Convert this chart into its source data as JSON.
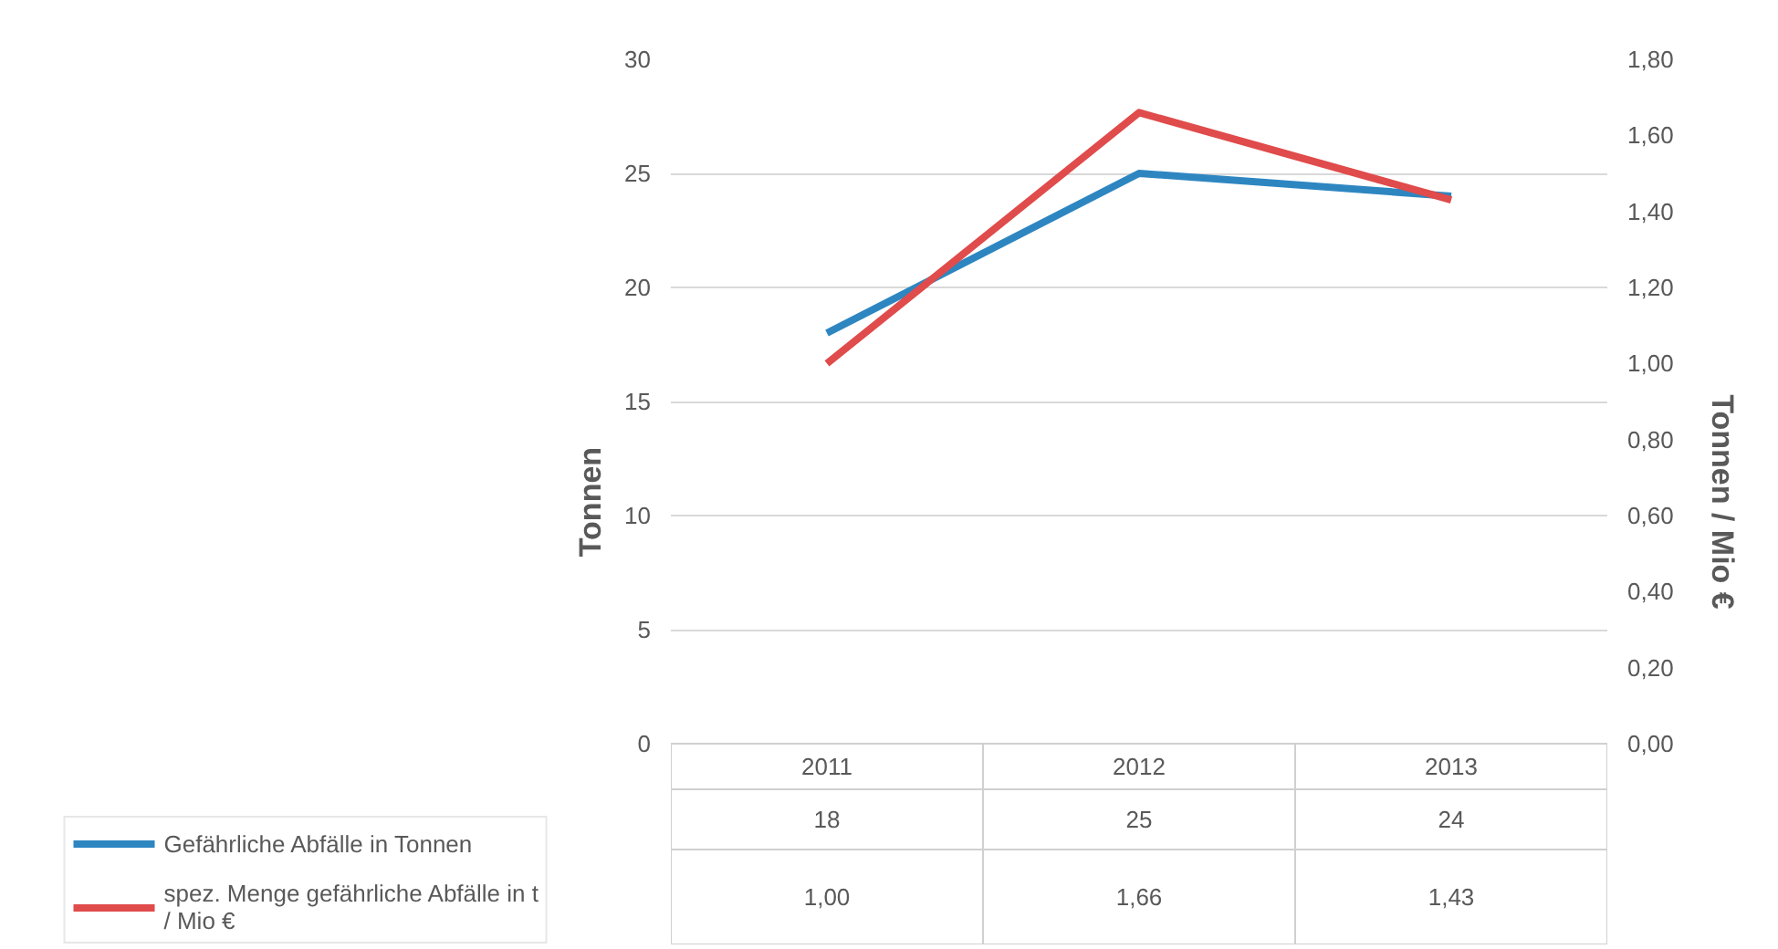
{
  "chart_data": {
    "type": "line",
    "categories": [
      "2011",
      "2012",
      "2013"
    ],
    "ylabel": "Tonnen",
    "y2label": "Tonnen / Mio €",
    "ylim": [
      0,
      30
    ],
    "yticks": [
      0,
      5,
      10,
      15,
      20,
      25,
      30
    ],
    "y2lim": [
      0,
      1.8
    ],
    "y2ticks": [
      {
        "value": 0,
        "label": "0,00"
      },
      {
        "value": 0.2,
        "label": "0,20"
      },
      {
        "value": 0.4,
        "label": "0,40"
      },
      {
        "value": 0.6,
        "label": "0,60"
      },
      {
        "value": 0.8,
        "label": "0,80"
      },
      {
        "value": 1.0,
        "label": "1,00"
      },
      {
        "value": 1.2,
        "label": "1,20"
      },
      {
        "value": 1.4,
        "label": "1,40"
      },
      {
        "value": 1.6,
        "label": "1,60"
      },
      {
        "value": 1.8,
        "label": "1,80"
      }
    ],
    "series": [
      {
        "name": "Gefährliche Abfälle in Tonnen",
        "color": "#2e86c1",
        "values": [
          18,
          25,
          24
        ],
        "value_labels": [
          "18",
          "25",
          "24"
        ]
      },
      {
        "name": "spez. Menge gefährliche Abfälle in t / Mio €",
        "color": "#e04b4b",
        "values": [
          1.0,
          1.66,
          1.43
        ],
        "value_labels": [
          "1,00",
          "1,66",
          "1,43"
        ],
        "axis": "y2"
      }
    ],
    "grid": "y",
    "legend": "bottom",
    "line_style": "solid",
    "marker": "none"
  }
}
